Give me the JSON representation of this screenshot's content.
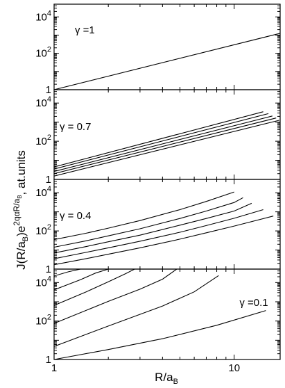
{
  "figure": {
    "ylabel_main": "J(R/a",
    "ylabel_sub": "B",
    "ylabel_mid": ")e",
    "ylabel_exp_main": "2qαR/a",
    "ylabel_exp_sub": "B",
    "ylabel_tail": ", at.units",
    "xlabel_main": "R/a",
    "xlabel_sub": "B"
  },
  "chart_data": [
    {
      "type": "line",
      "panel": "gamma=1",
      "annotation": "γ =1",
      "xscale": "log",
      "yscale": "log",
      "xlim": [
        1,
        18
      ],
      "ylim": [
        1,
        50000
      ],
      "yticklabels": [
        {
          "value": 10000,
          "base": "10",
          "exp": "4"
        },
        {
          "value": 100,
          "base": "10",
          "exp": "2"
        },
        {
          "value": 1,
          "base": "1",
          "exp": ""
        }
      ],
      "series": [
        {
          "x": [
            1,
            18
          ],
          "y": [
            1,
            1250
          ]
        }
      ]
    },
    {
      "type": "line",
      "panel": "gamma=0.7",
      "annotation": "γ = 0.7",
      "xscale": "log",
      "yscale": "log",
      "xlim": [
        1,
        18
      ],
      "ylim": [
        1,
        50000
      ],
      "yticklabels": [
        {
          "value": 10000,
          "base": "10",
          "exp": "4"
        },
        {
          "value": 100,
          "base": "10",
          "exp": "2"
        },
        {
          "value": 1,
          "base": "1",
          "exp": ""
        }
      ],
      "series": [
        {
          "x": [
            1,
            14.5
          ],
          "y": [
            4.5,
            3500
          ]
        },
        {
          "x": [
            1,
            15.5
          ],
          "y": [
            3.5,
            2800
          ]
        },
        {
          "x": [
            1,
            16.3
          ],
          "y": [
            2.6,
            2100
          ]
        },
        {
          "x": [
            1,
            17.1
          ],
          "y": [
            2.0,
            1650
          ]
        },
        {
          "x": [
            1,
            17.8
          ],
          "y": [
            1.5,
            1250
          ]
        }
      ]
    },
    {
      "type": "line",
      "panel": "gamma=0.4",
      "annotation": "γ = 0.4",
      "xscale": "log",
      "yscale": "log",
      "xlim": [
        1,
        18
      ],
      "ylim": [
        1,
        50000
      ],
      "yticklabels": [
        {
          "value": 10000,
          "base": "10",
          "exp": "4"
        },
        {
          "value": 100,
          "base": "10",
          "exp": "2"
        },
        {
          "value": 1,
          "base": "1",
          "exp": ""
        }
      ],
      "series": [
        {
          "x": [
            1,
            1.5,
            2,
            3,
            5,
            7,
            10
          ],
          "y": [
            35,
            75,
            140,
            350,
            1300,
            3500,
            11000
          ]
        },
        {
          "x": [
            1,
            1.5,
            2,
            3,
            5,
            7,
            10,
            11.2
          ],
          "y": [
            14,
            30,
            55,
            130,
            450,
            1100,
            3100,
            5500
          ]
        },
        {
          "x": [
            1,
            1.5,
            2,
            3,
            5,
            7,
            10,
            12.5
          ],
          "y": [
            7,
            15,
            27,
            60,
            200,
            450,
            1100,
            2800
          ]
        },
        {
          "x": [
            1,
            1.5,
            2,
            3,
            5,
            7,
            10,
            14.5
          ],
          "y": [
            3.5,
            7.5,
            13,
            29,
            85,
            190,
            460,
            1300
          ]
        },
        {
          "x": [
            1,
            1.5,
            2,
            3,
            5,
            7,
            10,
            16.5
          ],
          "y": [
            1.7,
            3.5,
            6,
            13,
            37,
            80,
            180,
            600
          ]
        }
      ]
    },
    {
      "type": "line",
      "panel": "gamma=0.1",
      "annotation": "γ =0.1",
      "xscale": "log",
      "yscale": "log",
      "xlim": [
        1,
        18
      ],
      "ylim": [
        1,
        50000
      ],
      "xticklabels": [
        {
          "value": 1,
          "label": "1"
        },
        {
          "value": 10,
          "label": "10"
        }
      ],
      "yticklabels": [
        {
          "value": 10000,
          "base": "10",
          "exp": "4"
        },
        {
          "value": 100,
          "base": "10",
          "exp": "2"
        },
        {
          "value": 1,
          "base": "1",
          "exp": ""
        }
      ],
      "series": [
        {
          "x": [
            1,
            1.2,
            1.4
          ],
          "y": [
            22000,
            36000,
            50000
          ]
        },
        {
          "x": [
            1,
            1.4,
            1.7,
            2.0
          ],
          "y": [
            4200,
            14000,
            31000,
            50000
          ]
        },
        {
          "x": [
            1,
            1.5,
            2.0,
            2.5,
            2.8
          ],
          "y": [
            650,
            3200,
            11000,
            29000,
            50000
          ]
        },
        {
          "x": [
            1,
            2,
            3,
            4,
            4.8
          ],
          "y": [
            75,
            1050,
            4500,
            15000,
            50000
          ]
        },
        {
          "x": [
            1,
            2,
            4,
            6,
            8.2
          ],
          "y": [
            4.8,
            55,
            600,
            3300,
            23000
          ]
        },
        {
          "x": [
            1,
            2,
            4,
            8,
            15
          ],
          "y": [
            1,
            3.3,
            12,
            60,
            350
          ]
        }
      ]
    }
  ]
}
